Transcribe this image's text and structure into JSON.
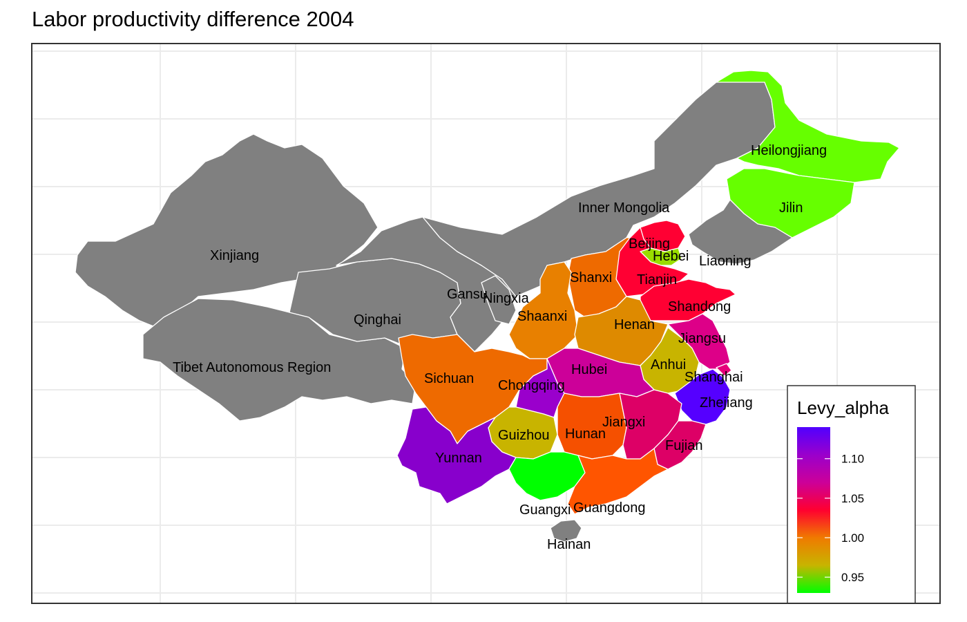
{
  "title": "Labor productivity difference 2004",
  "legend": {
    "title": "Levy_alpha",
    "ticks": [
      "1.10",
      "1.05",
      "1.00",
      "0.95"
    ],
    "tick_values": [
      1.1,
      1.05,
      1.0,
      0.95
    ],
    "range": [
      0.93,
      1.14
    ],
    "gradient_colors": [
      "#00ff00",
      "#c8b400",
      "#f07a00",
      "#ff0030",
      "#cc0099",
      "#9a00cc",
      "#5000ff"
    ]
  },
  "colors": {
    "no_data": "#808080",
    "background": "#ffffff",
    "grid": "#ebebeb",
    "border": "#333333"
  },
  "provinces": [
    {
      "name": "Xinjiang",
      "fill": "#808080"
    },
    {
      "name": "Tibet Autonomous Region",
      "fill": "#808080"
    },
    {
      "name": "Qinghai",
      "fill": "#808080"
    },
    {
      "name": "Gansu",
      "fill": "#808080"
    },
    {
      "name": "Ningxia",
      "fill": "#808080"
    },
    {
      "name": "Inner Mongolia",
      "fill": "#808080"
    },
    {
      "name": "Liaoning",
      "fill": "#808080"
    },
    {
      "name": "Hainan",
      "fill": "#808080"
    },
    {
      "name": "Heilongjiang",
      "fill": "#66ff00"
    },
    {
      "name": "Jilin",
      "fill": "#66ff00"
    },
    {
      "name": "Beijing",
      "fill": "#ff0033"
    },
    {
      "name": "Hebei",
      "fill": "#99dd00"
    },
    {
      "name": "Tianjin",
      "fill": "#ff0033"
    },
    {
      "name": "Shandong",
      "fill": "#ff0033"
    },
    {
      "name": "Shanxi",
      "fill": "#ee6a00"
    },
    {
      "name": "Shaanxi",
      "fill": "#e88000"
    },
    {
      "name": "Henan",
      "fill": "#de8a00"
    },
    {
      "name": "Jiangsu",
      "fill": "#dd0088"
    },
    {
      "name": "Anhui",
      "fill": "#c8b400"
    },
    {
      "name": "Shanghai",
      "fill": "#e6007a"
    },
    {
      "name": "Zhejiang",
      "fill": "#5500ff"
    },
    {
      "name": "Hubei",
      "fill": "#cc0099"
    },
    {
      "name": "Sichuan",
      "fill": "#ee6a00"
    },
    {
      "name": "Chongqing",
      "fill": "#9a00cc"
    },
    {
      "name": "Guizhou",
      "fill": "#c8b400"
    },
    {
      "name": "Hunan",
      "fill": "#f55000"
    },
    {
      "name": "Jiangxi",
      "fill": "#dd0066"
    },
    {
      "name": "Fujian",
      "fill": "#dd0066"
    },
    {
      "name": "Yunnan",
      "fill": "#8800cc"
    },
    {
      "name": "Guangxi",
      "fill": "#00ff00"
    },
    {
      "name": "Guangdong",
      "fill": "#ff5500"
    }
  ]
}
